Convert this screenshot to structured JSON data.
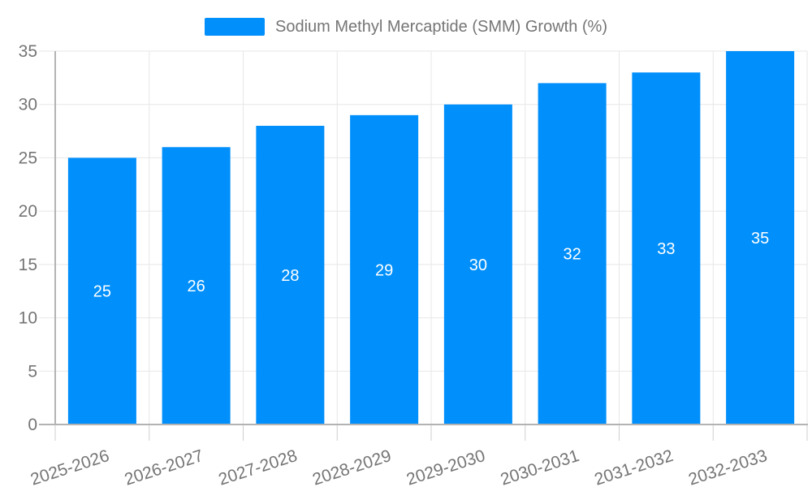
{
  "legend": {
    "position": "top",
    "label": "Sodium Methyl Mercaptide (SMM) Growth (%)"
  },
  "chart_data": {
    "type": "bar",
    "title": "",
    "categories": [
      "2025-2026",
      "2026-2027",
      "2027-2028",
      "2028-2029",
      "2029-2030",
      "2030-2031",
      "2031-2032",
      "2032-2033"
    ],
    "series": [
      {
        "name": "Sodium Methyl Mercaptide (SMM) Growth (%)",
        "values": [
          25,
          26,
          28,
          29,
          30,
          32,
          33,
          35
        ]
      }
    ],
    "xlabel": "",
    "ylabel": "",
    "ylim": [
      0,
      35
    ],
    "ytick_step": 5,
    "yticks": [
      0,
      5,
      10,
      15,
      20,
      25,
      30,
      35
    ],
    "grid": true,
    "bar_value_labels_position": "inside-center",
    "xlabel_rotation_deg": -18,
    "colors": {
      "bar": "#008FFB",
      "axis_label": "#757575",
      "grid": "#e7e7e7",
      "axis_line": "#b3b3b3",
      "tick": "#cfcfcf",
      "data_label": "#ffffff",
      "background": "#ffffff"
    }
  }
}
